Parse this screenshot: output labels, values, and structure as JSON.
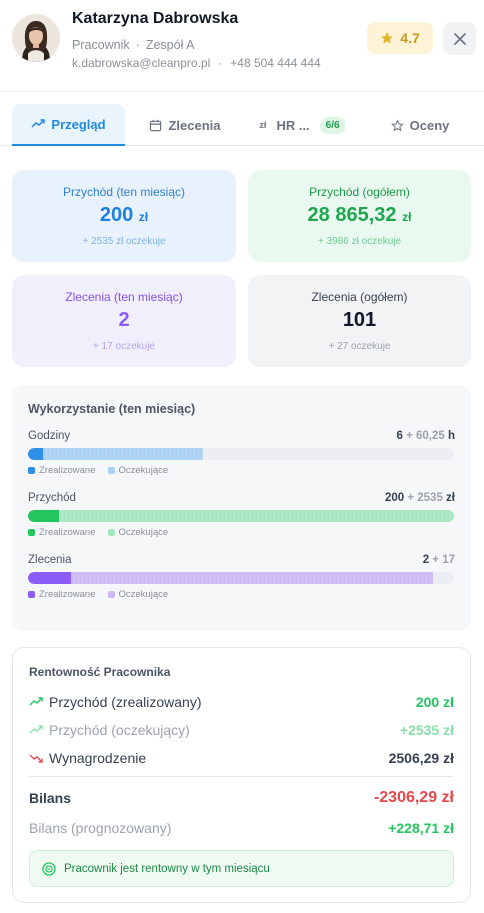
{
  "profile": {
    "name": "Katarzyna Dabrowska",
    "role": "Pracownik",
    "team": "Zespół A",
    "email": "k.dabrowska@cleanpro.pl",
    "phone": "+48 504 444 444",
    "rating": "4.7",
    "rating_icon": "star-icon",
    "close_icon": "close-icon"
  },
  "tabs": [
    {
      "label": "Przegląd",
      "icon": "trend-up-icon",
      "active": true
    },
    {
      "label": "Zlecenia",
      "icon": "calendar-icon",
      "active": false
    },
    {
      "label": "HR ...",
      "icon": "currency-icon",
      "badge": "6/6",
      "active": false
    },
    {
      "label": "Oceny",
      "icon": "star-outline-icon",
      "active": false
    }
  ],
  "stats": {
    "income_month": {
      "label": "Przychód (ten miesiąc)",
      "value": "200",
      "unit": "zł",
      "sub": "+ 2535 zł oczekuje"
    },
    "income_total": {
      "label": "Przychód (ogółem)",
      "value": "28 865,32",
      "unit": "zł",
      "sub": "+ 3986 zł oczekuje"
    },
    "orders_month": {
      "label": "Zlecenia (ten miesiąc)",
      "value": "2",
      "sub": "+ 17 oczekuje"
    },
    "orders_total": {
      "label": "Zlecenia (ogółem)",
      "value": "101",
      "sub": "+ 27 oczekuje"
    }
  },
  "usage": {
    "title": "Wykorzystanie (ten miesiąc)",
    "legend_done": "Zrealizowane",
    "legend_pending": "Oczekujące",
    "rows": [
      {
        "label": "Godziny",
        "done": "6",
        "pending": "+ 60,25",
        "unit": "h",
        "done_fraction": 0.035,
        "pending_fraction": 0.41,
        "color": "#2f8fe6",
        "pend_color": "#a9d2f7"
      },
      {
        "label": "Przychód",
        "done": "200",
        "pending": "+ 2535",
        "unit": "zł",
        "done_fraction": 0.073,
        "pending_fraction": 1.0,
        "color": "#22c55e",
        "pend_color": "#a4e9bd"
      },
      {
        "label": "Zlecenia",
        "done": "2",
        "pending": "+ 17",
        "unit": "",
        "done_fraction": 0.1,
        "pending_fraction": 0.95,
        "color": "#8b5cf6",
        "pend_color": "#cbb9f8"
      }
    ]
  },
  "profit": {
    "title": "Rentowność Pracownika",
    "income_done_label": "Przychód (zrealizowany)",
    "income_done_value": "200 zł",
    "income_pending_label": "Przychód (oczekujący)",
    "income_pending_value": "+2535 zł",
    "salary_label": "Wynagrodzenie",
    "salary_value": "2506,29 zł",
    "balance_label": "Bilans",
    "balance_value": "-2306,29 zł",
    "forecast_label": "Bilans (prognozowany)",
    "forecast_value": "+228,71 zł",
    "status_text": "Pracownik jest rentowny w tym miesiącu",
    "colors": {
      "positive": "#22c55e",
      "pending": "#86e0a6",
      "negative": "#e5484d"
    }
  }
}
